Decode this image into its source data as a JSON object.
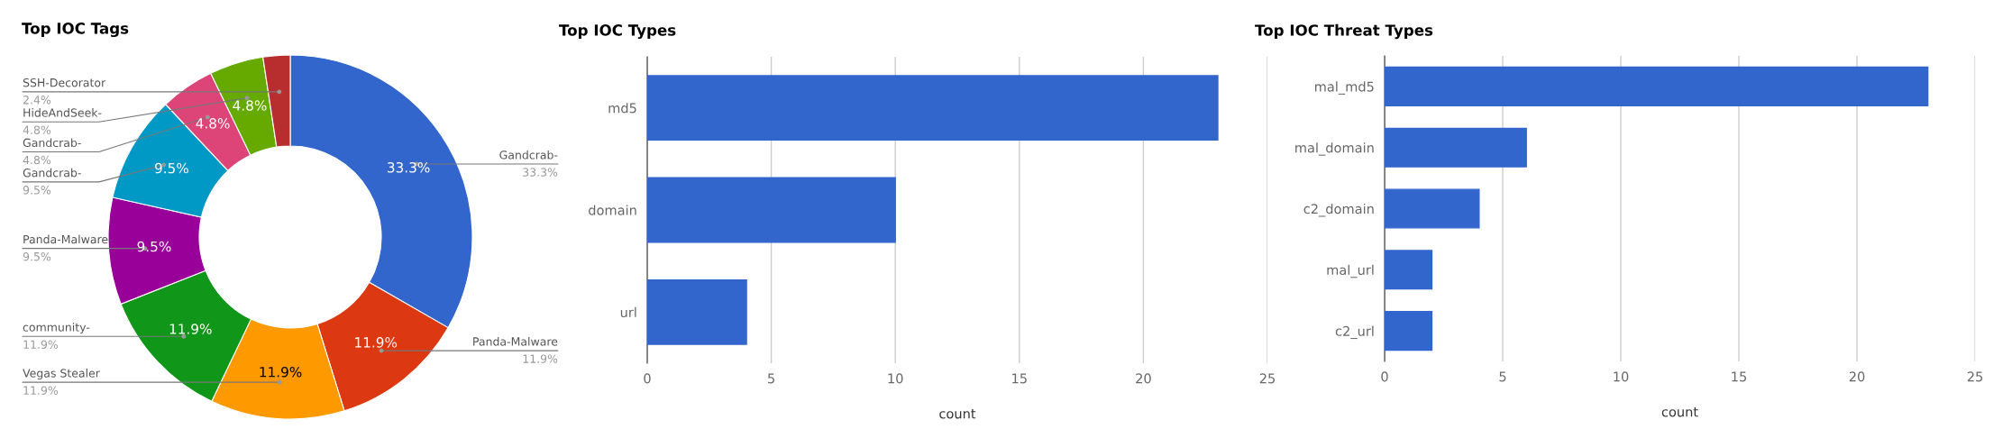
{
  "chart_data": [
    {
      "type": "donut",
      "title": "Top IOC Tags",
      "categories": [
        "Gandcrab-",
        "Panda-Malware",
        "Vegas Stealer",
        "community-",
        "Panda-Malware-",
        "Gandcrab-",
        "Gandcrab-",
        "HideAndSeek-",
        "SSH-Decorator"
      ],
      "values": [
        33.3,
        11.9,
        11.9,
        11.9,
        9.5,
        9.5,
        4.8,
        4.8,
        2.4
      ],
      "colors": [
        "#3366cc",
        "#dc3912",
        "#ff9900",
        "#109618",
        "#990099",
        "#0099c6",
        "#dd4477",
        "#66aa00",
        "#b82e2e"
      ],
      "value_labels": [
        "33.3%",
        "11.9%",
        "11.9%",
        "11.9%",
        "9.5%",
        "9.5%",
        "4.8%",
        "4.8%",
        "2.4%"
      ]
    },
    {
      "type": "bar",
      "orientation": "horizontal",
      "title": "Top IOC Types",
      "xlabel": "count",
      "categories": [
        "md5",
        "domain",
        "url"
      ],
      "series": [
        {
          "color": "#3366cc",
          "values": [
            23,
            10,
            4
          ]
        }
      ],
      "xlim": [
        0,
        25
      ],
      "xticks": [
        0,
        5,
        10,
        15,
        20,
        25
      ],
      "grid": "x"
    },
    {
      "type": "bar",
      "orientation": "horizontal",
      "title": "Top IOC Threat Types",
      "xlabel": "count",
      "categories": [
        "mal_md5",
        "mal_domain",
        "c2_domain",
        "mal_url",
        "c2_url"
      ],
      "series": [
        {
          "color": "#3366cc",
          "values": [
            23,
            6,
            4,
            2,
            2
          ]
        }
      ],
      "xlim": [
        0,
        25
      ],
      "xticks": [
        0,
        5,
        10,
        15,
        20,
        25
      ],
      "grid": "x"
    }
  ]
}
